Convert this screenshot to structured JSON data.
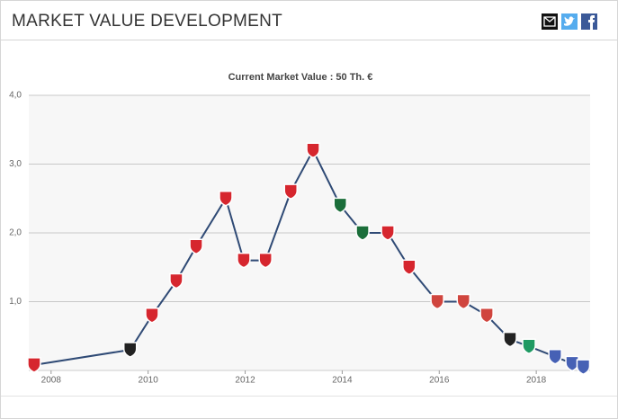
{
  "header": {
    "title": "MARKET VALUE DEVELOPMENT"
  },
  "chart_data": {
    "type": "line",
    "subtitle": "Current Market Value : 50 Th. €",
    "x": [
      2007.65,
      2009.63,
      2010.08,
      2010.58,
      2010.99,
      2011.6,
      2011.97,
      2012.42,
      2012.94,
      2013.4,
      2013.96,
      2014.42,
      2014.94,
      2015.38,
      2015.96,
      2016.5,
      2016.98,
      2017.46,
      2017.85,
      2018.39,
      2018.74,
      2018.97
    ],
    "values": [
      0.08,
      0.3,
      0.8,
      1.3,
      1.8,
      2.5,
      1.6,
      1.6,
      2.6,
      3.2,
      2.4,
      2.0,
      2.0,
      1.5,
      1.0,
      1.0,
      0.8,
      0.45,
      0.35,
      0.2,
      0.1,
      0.05
    ],
    "color": "#2f4a75",
    "marker_colors": [
      "#d6262e",
      "#222222",
      "#d6262e",
      "#d6262e",
      "#d6262e",
      "#d6262e",
      "#d6262e",
      "#d6262e",
      "#d6262e",
      "#d6262e",
      "#1b6e3a",
      "#1b6e3a",
      "#d6262e",
      "#d6262e",
      "#d0453e",
      "#d0453e",
      "#d0453e",
      "#222222",
      "#1f9a63",
      "#4661b5",
      "#4661b5",
      "#4661b5"
    ],
    "xlim": [
      2007.54,
      2019.11
    ],
    "xticks": [
      2008,
      2010,
      2012,
      2014,
      2016,
      2018
    ],
    "ylim": [
      0,
      4
    ],
    "yticks": [
      {
        "value": 1,
        "label": "1,0"
      },
      {
        "value": 2,
        "label": "2,0"
      },
      {
        "value": 3,
        "label": "3,0"
      },
      {
        "value": 4,
        "label": "4,0"
      }
    ],
    "grid": true
  }
}
